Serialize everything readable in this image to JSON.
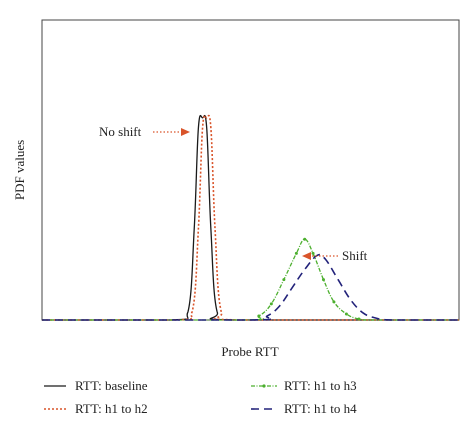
{
  "chart_data": {
    "type": "line",
    "title": "",
    "xlabel": "Probe RTT",
    "ylabel": "PDF values",
    "xlim": [
      0,
      100
    ],
    "ylim": [
      0,
      1.0
    ],
    "x_ticks": "none",
    "y_ticks": "none",
    "grid": false,
    "legend_position": "bottom",
    "series": [
      {
        "name": "RTT: baseline",
        "color": "#1a1a1a",
        "style": "solid",
        "x": [
          0,
          31,
          35,
          36.5,
          37.5,
          38.5,
          39.5,
          40.5,
          42,
          46,
          100
        ],
        "y": [
          0,
          0,
          0.04,
          0.45,
          0.95,
          1.0,
          0.95,
          0.45,
          0.04,
          0,
          0
        ]
      },
      {
        "name": "RTT: h1 to h2",
        "color": "#d9542a",
        "style": "dotted",
        "x": [
          0,
          32,
          36,
          37.5,
          38.5,
          39.5,
          40.5,
          41.5,
          43,
          47,
          100
        ],
        "y": [
          0,
          0,
          0.04,
          0.45,
          0.95,
          1.0,
          0.95,
          0.45,
          0.04,
          0,
          0
        ]
      },
      {
        "name": "RTT: h1 to h3",
        "color": "#4caf2e",
        "style": "dash-dot-marker",
        "x": [
          0,
          48,
          52,
          55,
          58,
          61,
          63,
          65,
          67.5,
          70,
          73,
          76,
          80,
          100
        ],
        "y": [
          0,
          0,
          0.02,
          0.08,
          0.2,
          0.33,
          0.4,
          0.33,
          0.2,
          0.09,
          0.03,
          0.005,
          0,
          0
        ]
      },
      {
        "name": "RTT: h1 to h4",
        "color": "#22227a",
        "style": "dashed",
        "x": [
          0,
          50,
          54,
          57,
          60,
          63,
          66,
          68,
          71,
          74,
          77,
          80,
          84,
          100
        ],
        "y": [
          0,
          0,
          0.02,
          0.07,
          0.16,
          0.25,
          0.32,
          0.3,
          0.2,
          0.1,
          0.035,
          0.01,
          0,
          0
        ]
      }
    ],
    "annotations": [
      {
        "text": "No shift",
        "target_series": "RTT: h1 to h2",
        "target_x": 38.5,
        "target_y": 0.98,
        "arrow_color": "#d9542a",
        "arrow_style": "dotted"
      },
      {
        "text": "Shift",
        "target_series": "RTT: h1 to h4",
        "target_x": 67,
        "target_y": 0.32,
        "arrow_color": "#d9542a",
        "arrow_style": "dotted"
      }
    ]
  }
}
